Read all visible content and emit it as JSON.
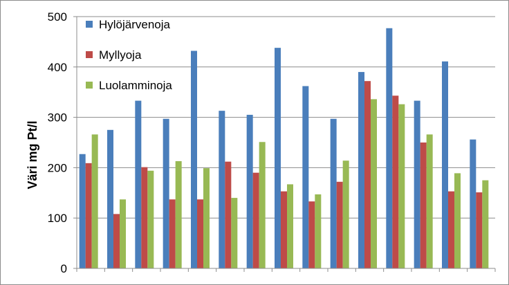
{
  "chart_data": {
    "type": "bar",
    "title": "",
    "xlabel": "",
    "ylabel": "Väri mg Pt/l",
    "ylim": [
      0,
      500
    ],
    "yticks": [
      0,
      100,
      200,
      300,
      400,
      500
    ],
    "grid": true,
    "legend_position": "top-left",
    "categories": [
      "",
      "",
      "",
      "",
      "",
      "",
      "",
      "",
      "",
      "",
      "",
      "",
      "",
      "",
      ""
    ],
    "series": [
      {
        "name": "Hylöjärvenoja",
        "color": "#4a7ebb",
        "values": [
          227,
          275,
          333,
          297,
          432,
          313,
          305,
          438,
          362,
          297,
          390,
          477,
          333,
          411,
          256
        ]
      },
      {
        "name": "Myllyoja",
        "color": "#be4b48",
        "values": [
          209,
          108,
          201,
          137,
          137,
          212,
          190,
          153,
          133,
          172,
          372,
          343,
          250,
          153,
          151
        ]
      },
      {
        "name": "Luolamminoja",
        "color": "#98b954",
        "values": [
          266,
          137,
          194,
          213,
          199,
          140,
          251,
          167,
          147,
          214,
          336,
          326,
          266,
          189,
          175
        ]
      }
    ]
  }
}
